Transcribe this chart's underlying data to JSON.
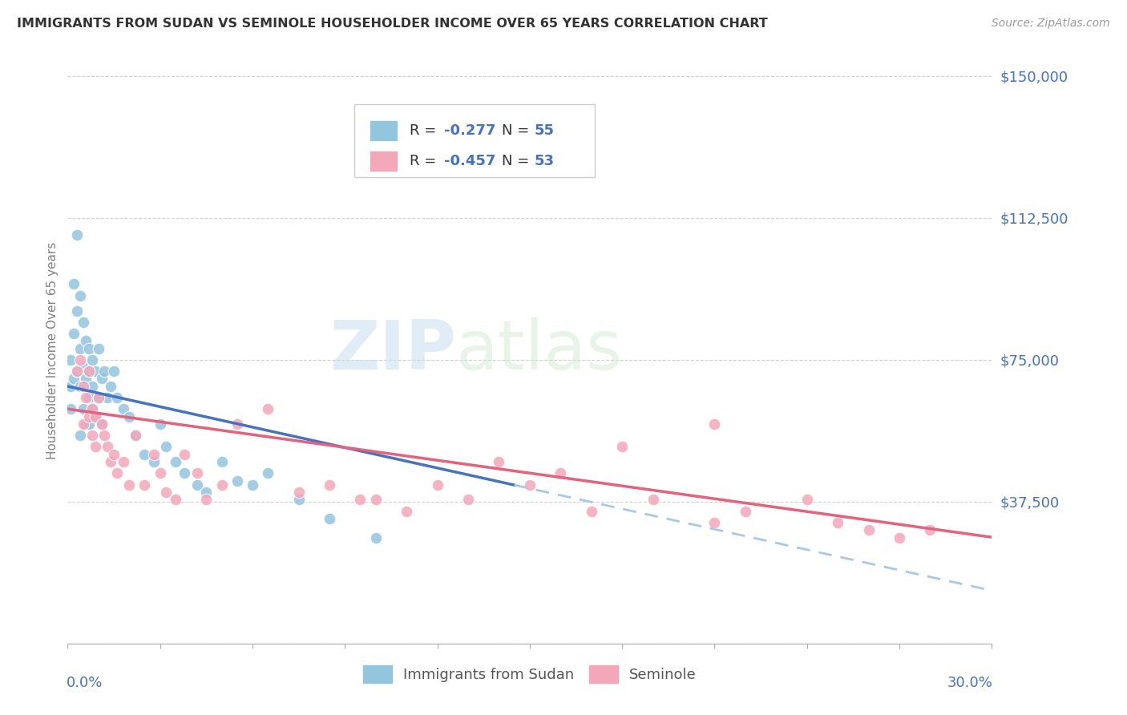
{
  "title": "IMMIGRANTS FROM SUDAN VS SEMINOLE HOUSEHOLDER INCOME OVER 65 YEARS CORRELATION CHART",
  "source": "Source: ZipAtlas.com",
  "ylabel": "Householder Income Over 65 years",
  "yticks": [
    0,
    37500,
    75000,
    112500,
    150000
  ],
  "ytick_labels": [
    "",
    "$37,500",
    "$75,000",
    "$112,500",
    "$150,000"
  ],
  "xmin": 0.0,
  "xmax": 0.3,
  "ymin": 0,
  "ymax": 155000,
  "legend_label1": "Immigrants from Sudan",
  "legend_label2": "Seminole",
  "color_blue": "#92C5DE",
  "color_pink": "#F4A7B9",
  "trendline_blue": "#4472C4",
  "trendline_pink": "#E8607A",
  "trendline_dash": "#A8C8E8",
  "watermark_zip": "ZIP",
  "watermark_atlas": "atlas",
  "blue_scatter_x": [
    0.001,
    0.001,
    0.001,
    0.002,
    0.002,
    0.002,
    0.003,
    0.003,
    0.003,
    0.004,
    0.004,
    0.004,
    0.004,
    0.005,
    0.005,
    0.005,
    0.006,
    0.006,
    0.006,
    0.007,
    0.007,
    0.007,
    0.007,
    0.008,
    0.008,
    0.008,
    0.009,
    0.009,
    0.01,
    0.01,
    0.011,
    0.011,
    0.012,
    0.013,
    0.014,
    0.015,
    0.016,
    0.018,
    0.02,
    0.022,
    0.025,
    0.028,
    0.03,
    0.032,
    0.035,
    0.038,
    0.042,
    0.045,
    0.05,
    0.055,
    0.06,
    0.065,
    0.075,
    0.085,
    0.1
  ],
  "blue_scatter_y": [
    68000,
    75000,
    62000,
    95000,
    82000,
    70000,
    108000,
    88000,
    72000,
    92000,
    78000,
    68000,
    55000,
    85000,
    73000,
    62000,
    80000,
    70000,
    58000,
    78000,
    72000,
    65000,
    58000,
    75000,
    68000,
    62000,
    72000,
    60000,
    78000,
    65000,
    70000,
    58000,
    72000,
    65000,
    68000,
    72000,
    65000,
    62000,
    60000,
    55000,
    50000,
    48000,
    58000,
    52000,
    48000,
    45000,
    42000,
    40000,
    48000,
    43000,
    42000,
    45000,
    38000,
    33000,
    28000
  ],
  "pink_scatter_x": [
    0.003,
    0.004,
    0.005,
    0.005,
    0.006,
    0.007,
    0.007,
    0.008,
    0.008,
    0.009,
    0.009,
    0.01,
    0.011,
    0.012,
    0.013,
    0.014,
    0.015,
    0.016,
    0.018,
    0.02,
    0.022,
    0.025,
    0.028,
    0.03,
    0.032,
    0.035,
    0.038,
    0.042,
    0.045,
    0.05,
    0.055,
    0.065,
    0.075,
    0.085,
    0.095,
    0.11,
    0.13,
    0.15,
    0.17,
    0.19,
    0.21,
    0.22,
    0.24,
    0.25,
    0.26,
    0.27,
    0.28,
    0.21,
    0.18,
    0.16,
    0.14,
    0.12,
    0.1
  ],
  "pink_scatter_y": [
    72000,
    75000,
    68000,
    58000,
    65000,
    72000,
    60000,
    62000,
    55000,
    60000,
    52000,
    65000,
    58000,
    55000,
    52000,
    48000,
    50000,
    45000,
    48000,
    42000,
    55000,
    42000,
    50000,
    45000,
    40000,
    38000,
    50000,
    45000,
    38000,
    42000,
    58000,
    62000,
    40000,
    42000,
    38000,
    35000,
    38000,
    42000,
    35000,
    38000,
    32000,
    35000,
    38000,
    32000,
    30000,
    28000,
    30000,
    58000,
    52000,
    45000,
    48000,
    42000,
    38000
  ]
}
